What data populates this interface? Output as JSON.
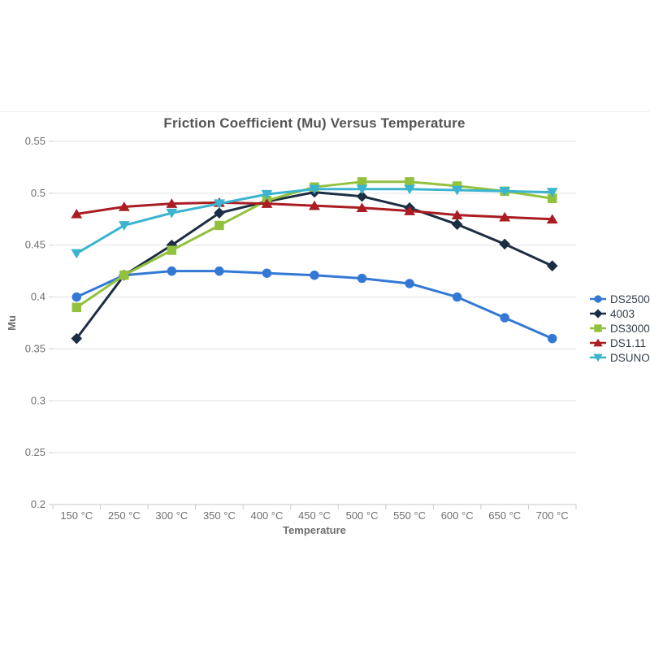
{
  "chart": {
    "title": "Friction Coefficient (Mu) Versus Temperature",
    "x_axis_title": "Temperature",
    "y_axis_title": "Mu"
  },
  "chart_data": {
    "type": "line",
    "title": "Friction Coefficient (Mu) Versus Temperature",
    "xlabel": "Temperature",
    "ylabel": "Mu",
    "categories": [
      "150 °C",
      "250 °C",
      "300 °C",
      "350 °C",
      "400 °C",
      "450 °C",
      "500 °C",
      "550 °C",
      "600 °C",
      "650 °C",
      "700 °C"
    ],
    "series": [
      {
        "name": "DS2500",
        "color": "#3478d6",
        "marker": "circle",
        "values": [
          0.4,
          0.421,
          0.425,
          0.425,
          0.423,
          0.421,
          0.418,
          0.413,
          0.4,
          0.38,
          0.36
        ]
      },
      {
        "name": "4003",
        "color": "#1c2e44",
        "marker": "diamond",
        "values": [
          0.36,
          0.421,
          0.45,
          0.481,
          0.492,
          0.501,
          0.497,
          0.486,
          0.47,
          0.451,
          0.43
        ]
      },
      {
        "name": "DS3000",
        "color": "#92c13e",
        "marker": "square",
        "values": [
          0.39,
          0.421,
          0.445,
          0.469,
          0.493,
          0.506,
          0.511,
          0.511,
          0.507,
          0.502,
          0.495
        ]
      },
      {
        "name": "DS1.11",
        "color": "#a91d23",
        "marker": "triangle-up",
        "values": [
          0.48,
          0.487,
          0.49,
          0.491,
          0.49,
          0.488,
          0.486,
          0.483,
          0.479,
          0.477,
          0.475
        ]
      },
      {
        "name": "DSUNO",
        "color": "#3cb4cf",
        "marker": "triangle-down",
        "values": [
          0.442,
          0.469,
          0.481,
          0.49,
          0.499,
          0.504,
          0.504,
          0.504,
          0.503,
          0.502,
          0.501
        ]
      }
    ],
    "ylim": [
      0.2,
      0.55
    ],
    "ytick_step": 0.05,
    "y_tick_labels": [
      "0.55",
      "0.5",
      "0.45",
      "0.4",
      "0.35",
      "0.3",
      "0.25",
      "0.2"
    ],
    "grid": true,
    "legend_position": "right",
    "colors": {
      "gridline": "#e2e2e2",
      "axis_line": "#c8c8c8",
      "tick": "#cccccc",
      "tick_label": "#6f6f6f",
      "axis_title": "#6f6f6f",
      "title": "#555555"
    }
  }
}
